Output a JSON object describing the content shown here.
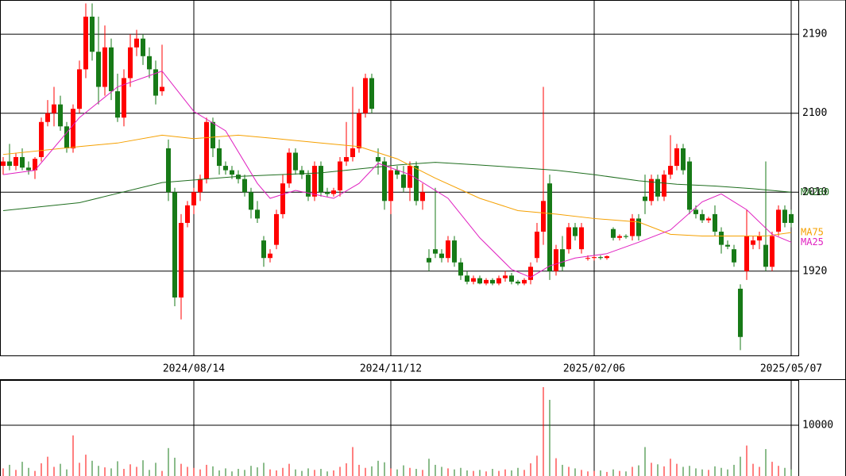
{
  "chart_data": [
    {
      "type": "candlestick",
      "categories": [
        null,
        null,
        null,
        null,
        null,
        null,
        null,
        null,
        null,
        null,
        null,
        null,
        null,
        null,
        null,
        null,
        null,
        null,
        null,
        null,
        null,
        null,
        null,
        null,
        null,
        null,
        null,
        null,
        null,
        null,
        "2024/08/14",
        null,
        null,
        null,
        null,
        null,
        null,
        null,
        null,
        null,
        null,
        null,
        null,
        null,
        null,
        null,
        null,
        null,
        null,
        null,
        null,
        null,
        null,
        null,
        null,
        null,
        null,
        null,
        null,
        null,
        null,
        "2024/11/12",
        null,
        null,
        null,
        null,
        null,
        null,
        null,
        null,
        null,
        null,
        null,
        null,
        null,
        null,
        null,
        null,
        null,
        null,
        null,
        null,
        null,
        null,
        null,
        null,
        null,
        null,
        null,
        null,
        null,
        null,
        null,
        "2025/02/06",
        null,
        null,
        null,
        null,
        null,
        null,
        null,
        null,
        null,
        null,
        null,
        null,
        null,
        null,
        null,
        null,
        null,
        null,
        null,
        null,
        null,
        null,
        null,
        null,
        null,
        null,
        null,
        null,
        null,
        null,
        "2025/05/07"
      ],
      "ohlc": [
        [
          2040,
          2050,
          2030,
          2045
        ],
        [
          2045,
          2065,
          2035,
          2040
        ],
        [
          2040,
          2055,
          2035,
          2050
        ],
        [
          2050,
          2060,
          2035,
          2038
        ],
        [
          2038,
          2045,
          2030,
          2035
        ],
        [
          2035,
          2050,
          2025,
          2048
        ],
        [
          2050,
          2095,
          2045,
          2090
        ],
        [
          2090,
          2115,
          2085,
          2100
        ],
        [
          2100,
          2130,
          2085,
          2110
        ],
        [
          2110,
          2120,
          2080,
          2085
        ],
        [
          2085,
          2090,
          2055,
          2060
        ],
        [
          2060,
          2110,
          2055,
          2105
        ],
        [
          2105,
          2160,
          2100,
          2150
        ],
        [
          2150,
          2225,
          2140,
          2210
        ],
        [
          2210,
          2225,
          2160,
          2170
        ],
        [
          2170,
          2210,
          2110,
          2130
        ],
        [
          2130,
          2200,
          2120,
          2175
        ],
        [
          2175,
          2185,
          2115,
          2125
        ],
        [
          2125,
          2145,
          2090,
          2095
        ],
        [
          2095,
          2150,
          2085,
          2140
        ],
        [
          2140,
          2190,
          2130,
          2175
        ],
        [
          2175,
          2195,
          2165,
          2185
        ],
        [
          2185,
          2190,
          2155,
          2165
        ],
        [
          2165,
          2175,
          2140,
          2150
        ],
        [
          2150,
          2160,
          2110,
          2120
        ],
        [
          2125,
          2178,
          2120,
          2130
        ],
        [
          2060,
          2070,
          2000,
          2010
        ],
        [
          2010,
          2015,
          1880,
          1890
        ],
        [
          1890,
          1985,
          1865,
          1975
        ],
        [
          1975,
          2000,
          1970,
          1995
        ],
        [
          1995,
          2015,
          1985,
          2010
        ],
        [
          2010,
          2030,
          2000,
          2025
        ],
        [
          2025,
          2095,
          2020,
          2090
        ],
        [
          2090,
          2095,
          2050,
          2060
        ],
        [
          2060,
          2070,
          2030,
          2040
        ],
        [
          2040,
          2045,
          2030,
          2035
        ],
        [
          2035,
          2040,
          2025,
          2030
        ],
        [
          2030,
          2035,
          2020,
          2025
        ],
        [
          2025,
          2030,
          2005,
          2010
        ],
        [
          2010,
          2015,
          1980,
          1990
        ],
        [
          1990,
          2000,
          1975,
          1980
        ],
        [
          1955,
          1960,
          1925,
          1935
        ],
        [
          1935,
          1945,
          1930,
          1940
        ],
        [
          1950,
          1990,
          1945,
          1985
        ],
        [
          1985,
          2030,
          1980,
          2020
        ],
        [
          2020,
          2060,
          2015,
          2055
        ],
        [
          2055,
          2060,
          2030,
          2035
        ],
        [
          2035,
          2040,
          2025,
          2030
        ],
        [
          2030,
          2035,
          2000,
          2005
        ],
        [
          2005,
          2045,
          2000,
          2040
        ],
        [
          2040,
          2045,
          2005,
          2010
        ],
        [
          2010,
          2015,
          2005,
          2008
        ],
        [
          2008,
          2015,
          2005,
          2012
        ],
        [
          2012,
          2050,
          2005,
          2045
        ],
        [
          2045,
          2090,
          2040,
          2050
        ],
        [
          2050,
          2130,
          2045,
          2060
        ],
        [
          2060,
          2105,
          2055,
          2100
        ],
        [
          2100,
          2145,
          2095,
          2140
        ],
        [
          2140,
          2145,
          2100,
          2105
        ],
        [
          2050,
          2060,
          2030,
          2045
        ],
        [
          2045,
          2050,
          1990,
          2000
        ],
        [
          2000,
          2040,
          1985,
          2035
        ],
        [
          2035,
          2040,
          2025,
          2030
        ],
        [
          2030,
          2040,
          2010,
          2015
        ],
        [
          2015,
          2045,
          2000,
          2040
        ],
        [
          2040,
          2045,
          1995,
          2000
        ],
        [
          2000,
          2020,
          1990,
          2010
        ],
        [
          1935,
          1945,
          1920,
          1930
        ],
        [
          1945,
          2015,
          1935,
          1940
        ],
        [
          1940,
          1945,
          1930,
          1935
        ],
        [
          1935,
          1960,
          1930,
          1955
        ],
        [
          1955,
          1960,
          1925,
          1930
        ],
        [
          1930,
          1935,
          1910,
          1915
        ],
        [
          1915,
          1920,
          1905,
          1908
        ],
        [
          1908,
          1915,
          1905,
          1912
        ],
        [
          1912,
          1915,
          1905,
          1906
        ],
        [
          1906,
          1912,
          1904,
          1910
        ],
        [
          1910,
          1912,
          1904,
          1906
        ],
        [
          1906,
          1915,
          1904,
          1912
        ],
        [
          1912,
          1920,
          1908,
          1915
        ],
        [
          1915,
          1918,
          1905,
          1908
        ],
        [
          1908,
          1910,
          1904,
          1906
        ],
        [
          1906,
          1912,
          1904,
          1910
        ],
        [
          1910,
          1930,
          1905,
          1925
        ],
        [
          1935,
          1975,
          1930,
          1965
        ],
        [
          1965,
          2130,
          1950,
          2000
        ],
        [
          2020,
          2030,
          1910,
          1920
        ],
        [
          1920,
          1950,
          1915,
          1945
        ],
        [
          1945,
          1960,
          1920,
          1925
        ],
        [
          1945,
          1975,
          1940,
          1970
        ],
        [
          1970,
          1975,
          1955,
          1960
        ],
        [
          1945,
          1975,
          1940,
          1970
        ],
        [
          1935,
          1938,
          1932,
          1935
        ],
        [
          1935,
          1938,
          1932,
          1936
        ],
        [
          1936,
          1938,
          1933,
          1935
        ],
        [
          1935,
          1938,
          1933,
          1937
        ],
        [
          1968,
          1970,
          1955,
          1958
        ],
        [
          1958,
          1962,
          1955,
          1960
        ],
        [
          1960,
          1962,
          1957,
          1959
        ],
        [
          1960,
          1985,
          1955,
          1980
        ],
        [
          1980,
          1985,
          1955,
          1960
        ],
        [
          2005,
          2030,
          1985,
          2000
        ],
        [
          2000,
          2030,
          1995,
          2025
        ],
        [
          2025,
          2030,
          2000,
          2005
        ],
        [
          2005,
          2035,
          2000,
          2030
        ],
        [
          2030,
          2075,
          2025,
          2040
        ],
        [
          2040,
          2065,
          2035,
          2060
        ],
        [
          2060,
          2065,
          2030,
          2035
        ],
        [
          2045,
          2050,
          1985,
          1990
        ],
        [
          1990,
          1995,
          1980,
          1985
        ],
        [
          1985,
          1990,
          1975,
          1978
        ],
        [
          1978,
          1982,
          1975,
          1980
        ],
        [
          1985,
          1995,
          1960,
          1965
        ],
        [
          1965,
          1970,
          1940,
          1950
        ],
        [
          1950,
          1955,
          1945,
          1948
        ],
        [
          1945,
          1950,
          1925,
          1930
        ],
        [
          1900,
          1905,
          1830,
          1845
        ],
        [
          1920,
          1990,
          1910,
          1960
        ],
        [
          1950,
          1960,
          1945,
          1955
        ],
        [
          1955,
          1965,
          1945,
          1960
        ],
        [
          1950,
          2045,
          1920,
          1925
        ],
        [
          1925,
          1965,
          1920,
          1960
        ],
        [
          1965,
          1995,
          1960,
          1990
        ],
        [
          1990,
          1995,
          1970,
          1975
        ],
        [
          1985,
          1990,
          1970,
          1975
        ]
      ],
      "up_color": "#ff0000",
      "down_color": "#177a17",
      "lines": [
        {
          "name": "MA200",
          "color": "#1f6e1f",
          "x": [
            0,
            12,
            25,
            37,
            50,
            62,
            68,
            75,
            87,
            93,
            100,
            106,
            112,
            118,
            124
          ],
          "values": [
            1989,
            1998,
            2021,
            2028,
            2032,
            2041,
            2044,
            2041,
            2035,
            2030,
            2023,
            2019,
            2017,
            2014,
            2010
          ]
        },
        {
          "name": "MA75",
          "color": "#f5a000",
          "x": [
            0,
            12,
            18,
            25,
            30,
            37,
            43,
            50,
            56,
            62,
            68,
            75,
            81,
            87,
            93,
            100,
            105,
            110,
            115,
            120,
            124
          ],
          "values": [
            2053,
            2062,
            2066,
            2075,
            2071,
            2075,
            2071,
            2066,
            2062,
            2048,
            2026,
            2003,
            1989,
            1985,
            1980,
            1976,
            1962,
            1960,
            1960,
            1960,
            1964
          ]
        },
        {
          "name": "MA25",
          "color": "#e020c0",
          "x": [
            0,
            5,
            12,
            18,
            25,
            30,
            35,
            40,
            42,
            46,
            52,
            56,
            59,
            64,
            70,
            75,
            80,
            83,
            86,
            90,
            95,
            100,
            105,
            110,
            113,
            117,
            121,
            124
          ],
          "values": [
            2030,
            2035,
            2095,
            2130,
            2148,
            2102,
            2080,
            2020,
            2003,
            2012,
            2003,
            2020,
            2043,
            2030,
            2003,
            1958,
            1922,
            1913,
            1926,
            1935,
            1940,
            1953,
            1967,
            1999,
            2008,
            1990,
            1962,
            1953
          ]
        }
      ],
      "ylim": [
        1824,
        2229
      ],
      "yticks": [
        1920,
        2010,
        2100,
        2190
      ],
      "grid": true
    },
    {
      "type": "volume",
      "values": [
        1500,
        2200,
        1200,
        2800,
        1600,
        1000,
        2500,
        3800,
        1800,
        2400,
        1300,
        8000,
        2600,
        4200,
        3000,
        2000,
        1700,
        1500,
        2900,
        1400,
        2300,
        1800,
        3100,
        1200,
        2600,
        1000,
        5500,
        3600,
        2400,
        1800,
        1600,
        1300,
        2200,
        1900,
        1100,
        1500,
        900,
        1400,
        1200,
        2000,
        1700,
        2600,
        1300,
        1100,
        1600,
        2400,
        1300,
        1000,
        1500,
        1200,
        1400,
        900,
        1100,
        1800,
        2500,
        5700,
        2200,
        1600,
        1900,
        3000,
        2700,
        1500,
        1300,
        2100,
        1600,
        1400,
        1200,
        3400,
        2200,
        1800,
        1500,
        1300,
        1600,
        1100,
        1000,
        1200,
        900,
        1400,
        1000,
        1300,
        1100,
        1600,
        1200,
        2500,
        4000,
        17500,
        15000,
        3500,
        2200,
        1800,
        1500,
        1200,
        900,
        1000,
        1100,
        800,
        1300,
        1000,
        900,
        1800,
        2100,
        5700,
        2600,
        2300,
        1900,
        3400,
        2400,
        1800,
        2000,
        1500,
        1300,
        1200,
        1900,
        1600,
        1300,
        2200,
        3800,
        6000,
        2400,
        1800,
        5300,
        2800,
        2000,
        1600,
        1300
      ],
      "ylim": [
        0,
        18750
      ],
      "yticks": [
        10000
      ],
      "grid": true
    }
  ]
}
